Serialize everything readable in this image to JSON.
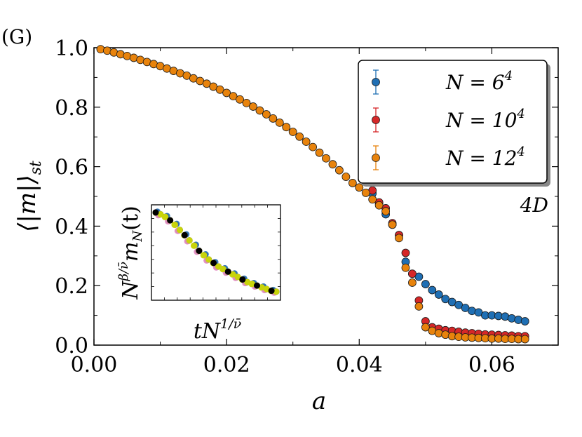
{
  "panel_label": "(G)",
  "chart_data": {
    "type": "scatter",
    "title": "",
    "xlabel": "a",
    "ylabel": "⟨|m|⟩",
    "ylabel_sub": "st",
    "xlim": [
      0.0,
      0.07
    ],
    "ylim": [
      0.0,
      1.0
    ],
    "xticks": [
      0.0,
      0.02,
      0.04,
      0.06
    ],
    "xtick_labels": [
      "0.00",
      "0.02",
      "0.04",
      "0.06"
    ],
    "yticks": [
      0.0,
      0.2,
      0.4,
      0.6,
      0.8,
      1.0
    ],
    "ytick_labels": [
      "0.0",
      "0.2",
      "0.4",
      "0.6",
      "0.8",
      "1.0"
    ],
    "legend_position": "top-right",
    "annotation": "4D",
    "series": [
      {
        "name_main": "N = 6",
        "name_exp": "4",
        "color": "#1f6fb4",
        "x": [
          0.042,
          0.043,
          0.044,
          0.045,
          0.046,
          0.047,
          0.048,
          0.049,
          0.05,
          0.051,
          0.052,
          0.053,
          0.054,
          0.055,
          0.056,
          0.057,
          0.058,
          0.059,
          0.06,
          0.061,
          0.062,
          0.063,
          0.064,
          0.065
        ],
        "y": [
          0.51,
          0.475,
          0.44,
          0.405,
          0.37,
          0.28,
          0.24,
          0.23,
          0.205,
          0.185,
          0.17,
          0.155,
          0.145,
          0.135,
          0.125,
          0.115,
          0.11,
          0.1,
          0.1,
          0.098,
          0.096,
          0.09,
          0.085,
          0.08
        ]
      },
      {
        "name_main": "N = 10",
        "name_exp": "4",
        "color": "#d62728",
        "x": [
          0.042,
          0.043,
          0.044,
          0.045,
          0.046,
          0.047,
          0.048,
          0.049,
          0.05,
          0.051,
          0.052,
          0.053,
          0.054,
          0.055,
          0.056,
          0.057,
          0.058,
          0.059,
          0.06,
          0.061,
          0.062,
          0.063,
          0.064,
          0.065
        ],
        "y": [
          0.52,
          0.48,
          0.46,
          0.41,
          0.37,
          0.31,
          0.24,
          0.15,
          0.08,
          0.06,
          0.055,
          0.05,
          0.048,
          0.045,
          0.042,
          0.04,
          0.038,
          0.036,
          0.035,
          0.034,
          0.033,
          0.032,
          0.03,
          0.03
        ]
      },
      {
        "name_main": "N = 12",
        "name_exp": "4",
        "color": "#e8830c",
        "x": [
          0.001,
          0.002,
          0.003,
          0.004,
          0.005,
          0.006,
          0.007,
          0.008,
          0.009,
          0.01,
          0.011,
          0.012,
          0.013,
          0.014,
          0.015,
          0.016,
          0.017,
          0.018,
          0.019,
          0.02,
          0.021,
          0.022,
          0.023,
          0.024,
          0.025,
          0.026,
          0.027,
          0.028,
          0.029,
          0.03,
          0.031,
          0.032,
          0.033,
          0.034,
          0.035,
          0.036,
          0.037,
          0.038,
          0.039,
          0.04,
          0.041,
          0.042,
          0.043,
          0.044,
          0.045,
          0.046,
          0.047,
          0.048,
          0.049,
          0.05,
          0.051,
          0.052,
          0.053,
          0.054,
          0.055,
          0.056,
          0.057,
          0.058,
          0.059,
          0.06,
          0.061,
          0.062,
          0.063,
          0.064,
          0.065
        ],
        "y": [
          0.995,
          0.99,
          0.984,
          0.978,
          0.972,
          0.966,
          0.959,
          0.952,
          0.945,
          0.938,
          0.93,
          0.922,
          0.914,
          0.906,
          0.897,
          0.888,
          0.879,
          0.869,
          0.859,
          0.848,
          0.837,
          0.826,
          0.814,
          0.802,
          0.789,
          0.776,
          0.762,
          0.748,
          0.733,
          0.717,
          0.701,
          0.684,
          0.666,
          0.647,
          0.628,
          0.608,
          0.588,
          0.566,
          0.545,
          0.53,
          0.512,
          0.49,
          0.47,
          0.45,
          0.405,
          0.36,
          0.26,
          0.21,
          0.13,
          0.06,
          0.048,
          0.04,
          0.035,
          0.03,
          0.028,
          0.026,
          0.025,
          0.024,
          0.023,
          0.022,
          0.022,
          0.021,
          0.021,
          0.02,
          0.02
        ]
      }
    ],
    "inset": {
      "type": "scatter",
      "xlabel_main": "tN",
      "xlabel_exp": "1/ν̄",
      "ylabel_main": "N",
      "ylabel_exp": "β/ν̄",
      "ylabel_tail": "m",
      "ylabel_sub": "N",
      "ylabel_paren": "(t)",
      "xlim": [
        0,
        1
      ],
      "ylim": [
        0,
        1
      ],
      "collapse_x": [
        0.0,
        0.04,
        0.08,
        0.12,
        0.16,
        0.2,
        0.24,
        0.28,
        0.32,
        0.36,
        0.4,
        0.44,
        0.48,
        0.52,
        0.56,
        0.6,
        0.64,
        0.68,
        0.72,
        0.76,
        0.8,
        0.84,
        0.88,
        0.92,
        0.96,
        1.0
      ],
      "collapse_y": [
        0.96,
        0.94,
        0.91,
        0.87,
        0.82,
        0.76,
        0.7,
        0.64,
        0.58,
        0.52,
        0.47,
        0.42,
        0.38,
        0.34,
        0.31,
        0.28,
        0.25,
        0.22,
        0.19,
        0.16,
        0.14,
        0.12,
        0.1,
        0.08,
        0.06,
        0.05
      ],
      "colors": [
        "#000000",
        "#c8d40a",
        "#d62728",
        "#6a9e2f",
        "#1f6fb4",
        "#e38bc4"
      ]
    }
  }
}
